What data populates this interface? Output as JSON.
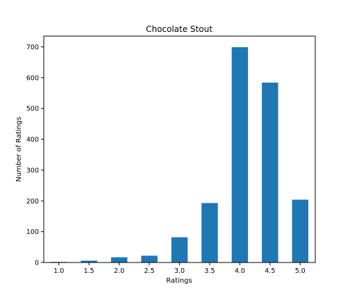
{
  "chart_data": {
    "type": "bar",
    "title": "Chocolate Stout",
    "xlabel": "Ratings",
    "ylabel": "Number of Ratings",
    "categories": [
      "1.0",
      "1.5",
      "2.0",
      "2.5",
      "3.0",
      "3.5",
      "4.0",
      "4.5",
      "5.0"
    ],
    "values": [
      2,
      6,
      17,
      22,
      82,
      193,
      699,
      584,
      204
    ],
    "ylim": [
      0,
      735
    ],
    "yticks": [
      0,
      100,
      200,
      300,
      400,
      500,
      600,
      700
    ],
    "bar_color": "#1f77b4",
    "grid": false,
    "legend": "none"
  }
}
